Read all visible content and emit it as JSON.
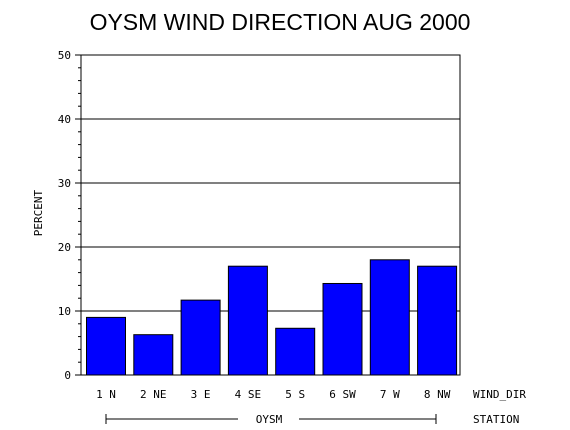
{
  "chart_data": {
    "type": "bar",
    "title": "OYSM WIND DIRECTION AUG 2000",
    "ylabel": "PERCENT",
    "xlabel": "WIND_DIR",
    "group_label": "STATION",
    "group_name": "OYSM",
    "categories": [
      "1 N",
      "2 NE",
      "3 E",
      "4 SE",
      "5 S",
      "6 SW",
      "7 W",
      "8 NW"
    ],
    "values": [
      9.0,
      6.3,
      11.7,
      17.0,
      7.3,
      14.3,
      18.0,
      17.0
    ],
    "ylim": [
      0,
      50
    ],
    "yticks": [
      "0",
      "10",
      "20",
      "30",
      "40",
      "50"
    ],
    "grid": true,
    "bar_color": "#0000ff"
  }
}
